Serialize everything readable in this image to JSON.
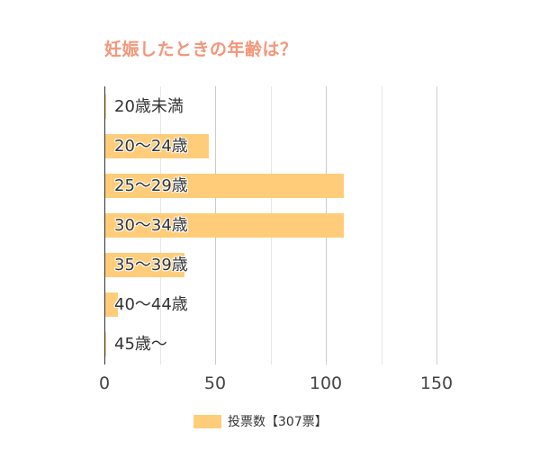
{
  "title": "妊娠したときの年齢は？",
  "colors": {
    "bar": "#ffcd79",
    "title": "#f4967a",
    "axis": "#333333",
    "grid": "#e6e6e6"
  },
  "legend": {
    "label": "投票数【307票】"
  },
  "axis": {
    "ticks": [
      "0",
      "50",
      "100",
      "150"
    ]
  },
  "chart_data": {
    "type": "bar",
    "orientation": "horizontal",
    "title": "妊娠したときの年齢は？",
    "categories": [
      "20歳未満",
      "20～24歳",
      "25～29歳",
      "30～34歳",
      "35～39歳",
      "40～44歳",
      "45歳～"
    ],
    "series": [
      {
        "name": "投票数【307票】",
        "values": [
          1,
          47,
          108,
          108,
          36,
          6,
          1
        ]
      }
    ],
    "xlabel": "",
    "ylabel": "",
    "xlim": [
      0,
      160
    ],
    "xticks": [
      0,
      50,
      100,
      150
    ],
    "grid": true,
    "legend_position": "bottom"
  }
}
